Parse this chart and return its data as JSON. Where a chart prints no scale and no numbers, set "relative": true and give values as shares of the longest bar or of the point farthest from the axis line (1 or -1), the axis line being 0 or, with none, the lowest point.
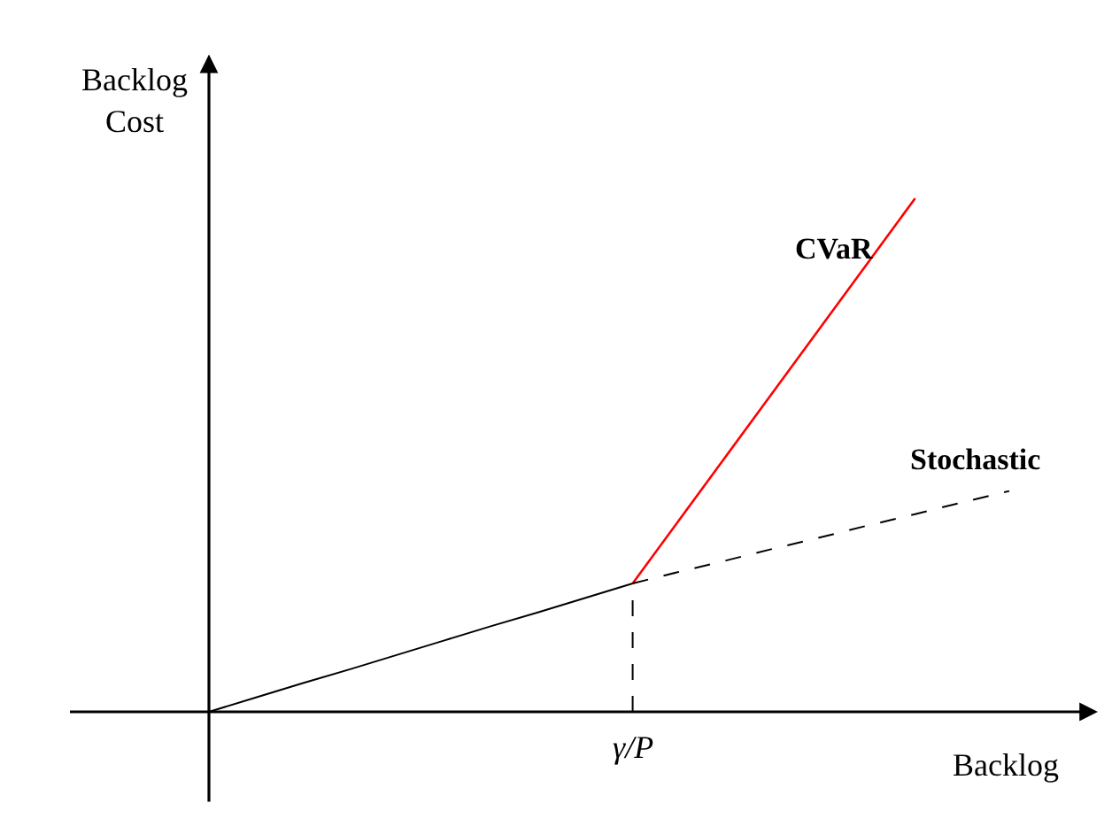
{
  "chart_data": {
    "type": "line",
    "relative": true,
    "xlabel": "Backlog",
    "ylabel": "Backlog\nCost",
    "grid": false,
    "legend": false,
    "marker": "none",
    "categories": [
      null,
      null,
      null,
      null,
      null,
      null,
      null,
      null,
      null,
      null,
      null,
      null,
      null,
      null,
      null,
      null,
      null,
      null
    ],
    "annotations": [
      "γ/P"
    ],
    "series": [
      {
        "color": "#000000",
        "line_style": "solid",
        "values": [
          0,
          0.028,
          0.056,
          0.083,
          0.111,
          0.139,
          0.167,
          0.194,
          0.222,
          0.25,
          null,
          null,
          null,
          null,
          null,
          null,
          null,
          null
        ]
      },
      {
        "name": "CVaR",
        "color": "#ff0000",
        "line_style": "solid",
        "values": [
          null,
          null,
          null,
          null,
          null,
          null,
          null,
          null,
          null,
          0.25,
          0.375,
          0.5,
          0.625,
          0.75,
          0.875,
          1,
          null,
          null
        ]
      },
      {
        "name": "Stochastic",
        "color": "#000000",
        "line_style": "dashed",
        "values": [
          null,
          null,
          null,
          null,
          null,
          null,
          null,
          null,
          null,
          0.25,
          0.273,
          0.295,
          0.318,
          0.34,
          0.363,
          0.385,
          0.408,
          0.43
        ]
      }
    ]
  }
}
